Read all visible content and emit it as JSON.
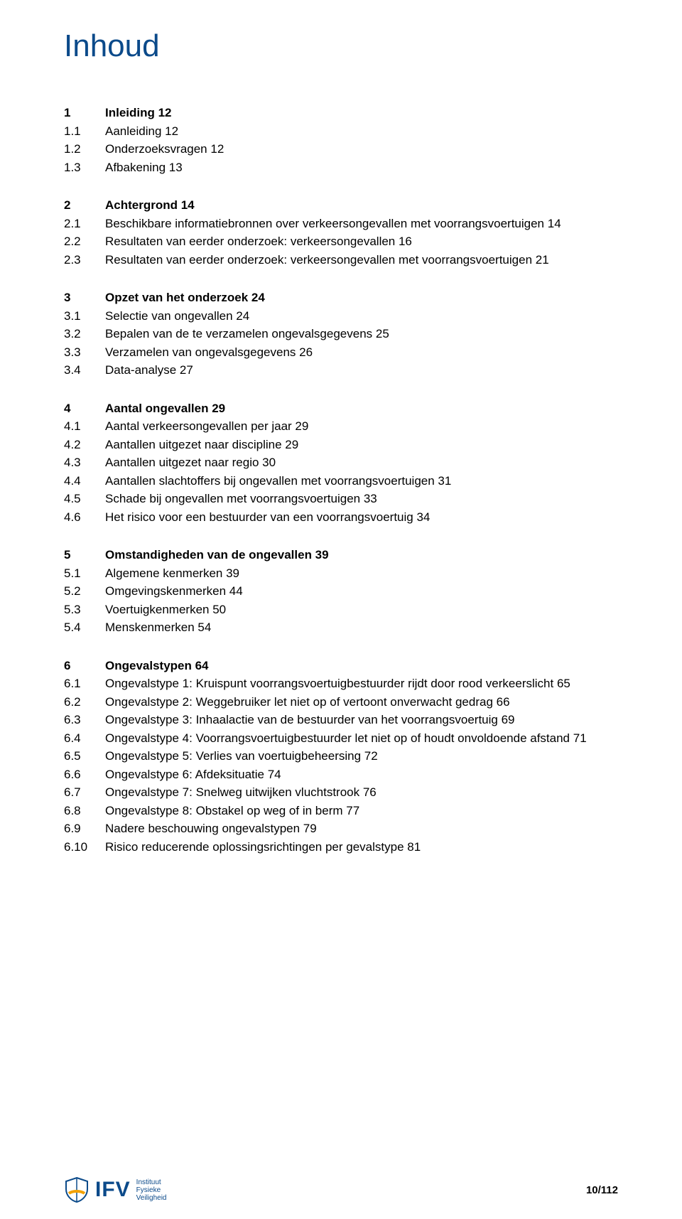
{
  "colors": {
    "title": "#0b4a8a",
    "text": "#000000",
    "logo": "#0b4a8a",
    "logo_accent": "#f2a100",
    "background": "#ffffff"
  },
  "title": "Inhoud",
  "sections": [
    {
      "rows": [
        {
          "num": "1",
          "txt": "Inleiding 12",
          "head": true
        },
        {
          "num": "1.1",
          "txt": "Aanleiding 12"
        },
        {
          "num": "1.2",
          "txt": "Onderzoeksvragen 12"
        },
        {
          "num": "1.3",
          "txt": "Afbakening 13"
        }
      ]
    },
    {
      "rows": [
        {
          "num": "2",
          "txt": "Achtergrond 14",
          "head": true
        },
        {
          "num": "2.1",
          "txt": "Beschikbare informatiebronnen over verkeersongevallen met voorrangsvoertuigen 14"
        },
        {
          "num": "2.2",
          "txt": "Resultaten van eerder onderzoek: verkeersongevallen 16"
        },
        {
          "num": "2.3",
          "txt": "Resultaten van eerder onderzoek: verkeersongevallen met voorrangsvoertuigen 21"
        }
      ]
    },
    {
      "rows": [
        {
          "num": "3",
          "txt": "Opzet van het onderzoek 24",
          "head": true
        },
        {
          "num": "3.1",
          "txt": "Selectie van ongevallen 24"
        },
        {
          "num": "3.2",
          "txt": "Bepalen van de te verzamelen ongevalsgegevens 25"
        },
        {
          "num": "3.3",
          "txt": "Verzamelen van ongevalsgegevens 26"
        },
        {
          "num": "3.4",
          "txt": "Data-analyse 27"
        }
      ]
    },
    {
      "rows": [
        {
          "num": "4",
          "txt": "Aantal ongevallen 29",
          "head": true
        },
        {
          "num": "4.1",
          "txt": "Aantal verkeersongevallen per jaar 29"
        },
        {
          "num": "4.2",
          "txt": "Aantallen uitgezet naar discipline 29"
        },
        {
          "num": "4.3",
          "txt": "Aantallen uitgezet naar regio 30"
        },
        {
          "num": "4.4",
          "txt": "Aantallen slachtoffers bij ongevallen met voorrangsvoertuigen 31"
        },
        {
          "num": "4.5",
          "txt": "Schade bij ongevallen met voorrangsvoertuigen 33"
        },
        {
          "num": "4.6",
          "txt": "Het risico voor een bestuurder van een voorrangsvoertuig 34"
        }
      ]
    },
    {
      "rows": [
        {
          "num": "5",
          "txt": "Omstandigheden van de ongevallen 39",
          "head": true
        },
        {
          "num": "5.1",
          "txt": "Algemene kenmerken 39"
        },
        {
          "num": "5.2",
          "txt": "Omgevingskenmerken 44"
        },
        {
          "num": "5.3",
          "txt": "Voertuigkenmerken 50"
        },
        {
          "num": "5.4",
          "txt": "Menskenmerken 54"
        }
      ]
    },
    {
      "rows": [
        {
          "num": "6",
          "txt": "Ongevalstypen 64",
          "head": true
        },
        {
          "num": "6.1",
          "txt": "Ongevalstype 1: Kruispunt voorrangsvoertuigbestuurder rijdt door rood verkeerslicht 65"
        },
        {
          "num": "6.2",
          "txt": "Ongevalstype 2: Weggebruiker let niet op of vertoont onverwacht gedrag 66"
        },
        {
          "num": "6.3",
          "txt": "Ongevalstype 3: Inhaalactie van de bestuurder van het voorrangsvoertuig 69"
        },
        {
          "num": "6.4",
          "txt": "Ongevalstype 4: Voorrangsvoertuigbestuurder let niet op of houdt onvoldoende afstand 71"
        },
        {
          "num": "6.5",
          "txt": "Ongevalstype 5: Verlies van voertuigbeheersing 72"
        },
        {
          "num": "6.6",
          "txt": "Ongevalstype 6: Afdeksituatie 74"
        },
        {
          "num": "6.7",
          "txt": "Ongevalstype 7: Snelweg uitwijken vluchtstrook 76"
        },
        {
          "num": "6.8",
          "txt": "Ongevalstype 8: Obstakel op weg of in berm 77"
        },
        {
          "num": "6.9",
          "txt": "Nadere beschouwing ongevalstypen 79"
        },
        {
          "num": "6.10",
          "txt": "Risico reducerende oplossingsrichtingen per gevalstype 81"
        }
      ]
    }
  ],
  "footer": {
    "logo_text": "IFV",
    "inst_line1": "Instituut",
    "inst_line2": "Fysieke",
    "inst_line3": "Veiligheid",
    "page_count": "10/112"
  }
}
